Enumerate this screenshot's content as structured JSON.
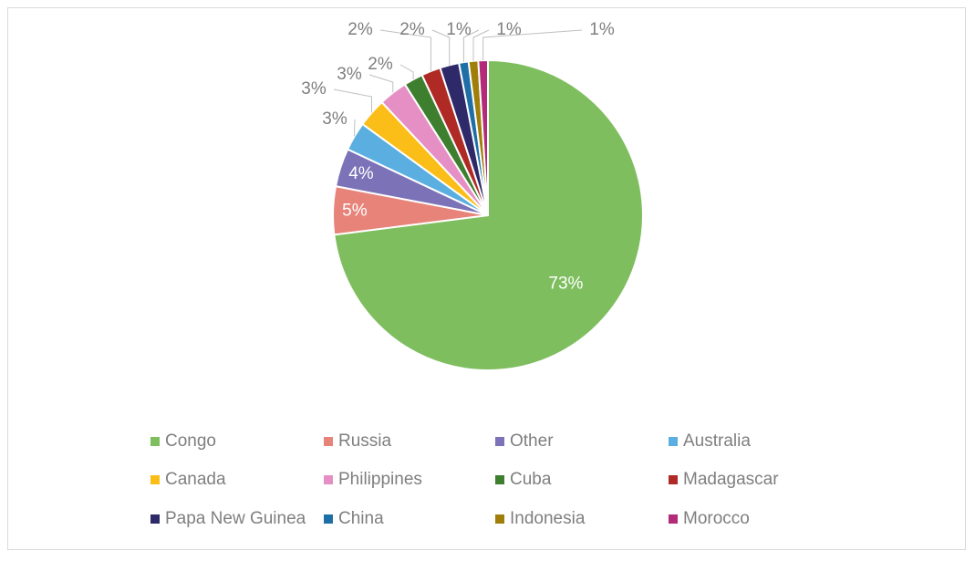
{
  "chart_data": {
    "type": "pie",
    "categories": [
      "Congo",
      "Russia",
      "Other",
      "Australia",
      "Canada",
      "Philippines",
      "Cuba",
      "Madagascar",
      "Papa New Guinea",
      "China",
      "Indonesia",
      "Morocco"
    ],
    "values": [
      73,
      5,
      4,
      3,
      3,
      3,
      2,
      2,
      2,
      1,
      1,
      1
    ],
    "value_labels": [
      "73%",
      "5%",
      "4%",
      "3%",
      "3%",
      "3%",
      "2%",
      "2%",
      "2%",
      "1%",
      "1%",
      "1%"
    ],
    "colors": [
      "#7fbe5f",
      "#e8837a",
      "#7b72b8",
      "#5aaee0",
      "#fbbd18",
      "#e68fc4",
      "#3e7f2f",
      "#b02a25",
      "#2e2a6a",
      "#1f6fa7",
      "#a07e0a",
      "#b32a78"
    ],
    "legend": "bottom"
  }
}
